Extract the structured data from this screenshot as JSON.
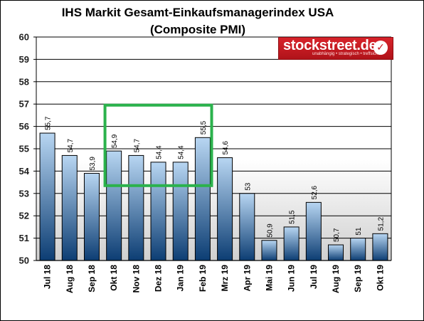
{
  "chart_data": {
    "type": "bar",
    "title": "IHS Markit Gesamt-Einkaufsmanagerindex USA",
    "subtitle": "(Composite PMI)",
    "categories": [
      "Jul 18",
      "Aug 18",
      "Sep 18",
      "Okt 18",
      "Nov 18",
      "Dez 18",
      "Jan 19",
      "Feb 19",
      "Mrz 19",
      "Apr 19",
      "Mai 19",
      "Jun 19",
      "Jul 19",
      "Aug 19",
      "Sep 19",
      "Okt 19"
    ],
    "values": [
      55.7,
      54.7,
      53.9,
      54.9,
      54.7,
      54.4,
      54.4,
      55.5,
      54.6,
      53,
      50.9,
      51.5,
      52.6,
      50.7,
      51,
      51.2
    ],
    "value_labels": [
      "55,7",
      "54,7",
      "53,9",
      "54,9",
      "54,7",
      "54,4",
      "54,4",
      "55,5",
      "54,6",
      "53",
      "50,9",
      "51,5",
      "52,6",
      "50,7",
      "51",
      "51,2"
    ],
    "y_ticks": [
      "50",
      "51",
      "52",
      "53",
      "54",
      "55",
      "56",
      "57",
      "58",
      "59",
      "60"
    ],
    "ylim": [
      50,
      60
    ],
    "grid": true,
    "highlight": {
      "from_category": "Okt 18",
      "to_category": "Feb 19",
      "y_range": [
        53.35,
        56.95
      ],
      "color": "#2bb24c"
    },
    "colors": {
      "bar_top": "#b8d6f2",
      "bar_bottom": "#0c3d73",
      "highlight": "#2bb24c"
    }
  },
  "logo": {
    "brand": "stockstreet.de",
    "tagline": "unabhängig • strategisch • treffsicher",
    "icon": "checkmark-icon",
    "color": "#c8161d"
  }
}
